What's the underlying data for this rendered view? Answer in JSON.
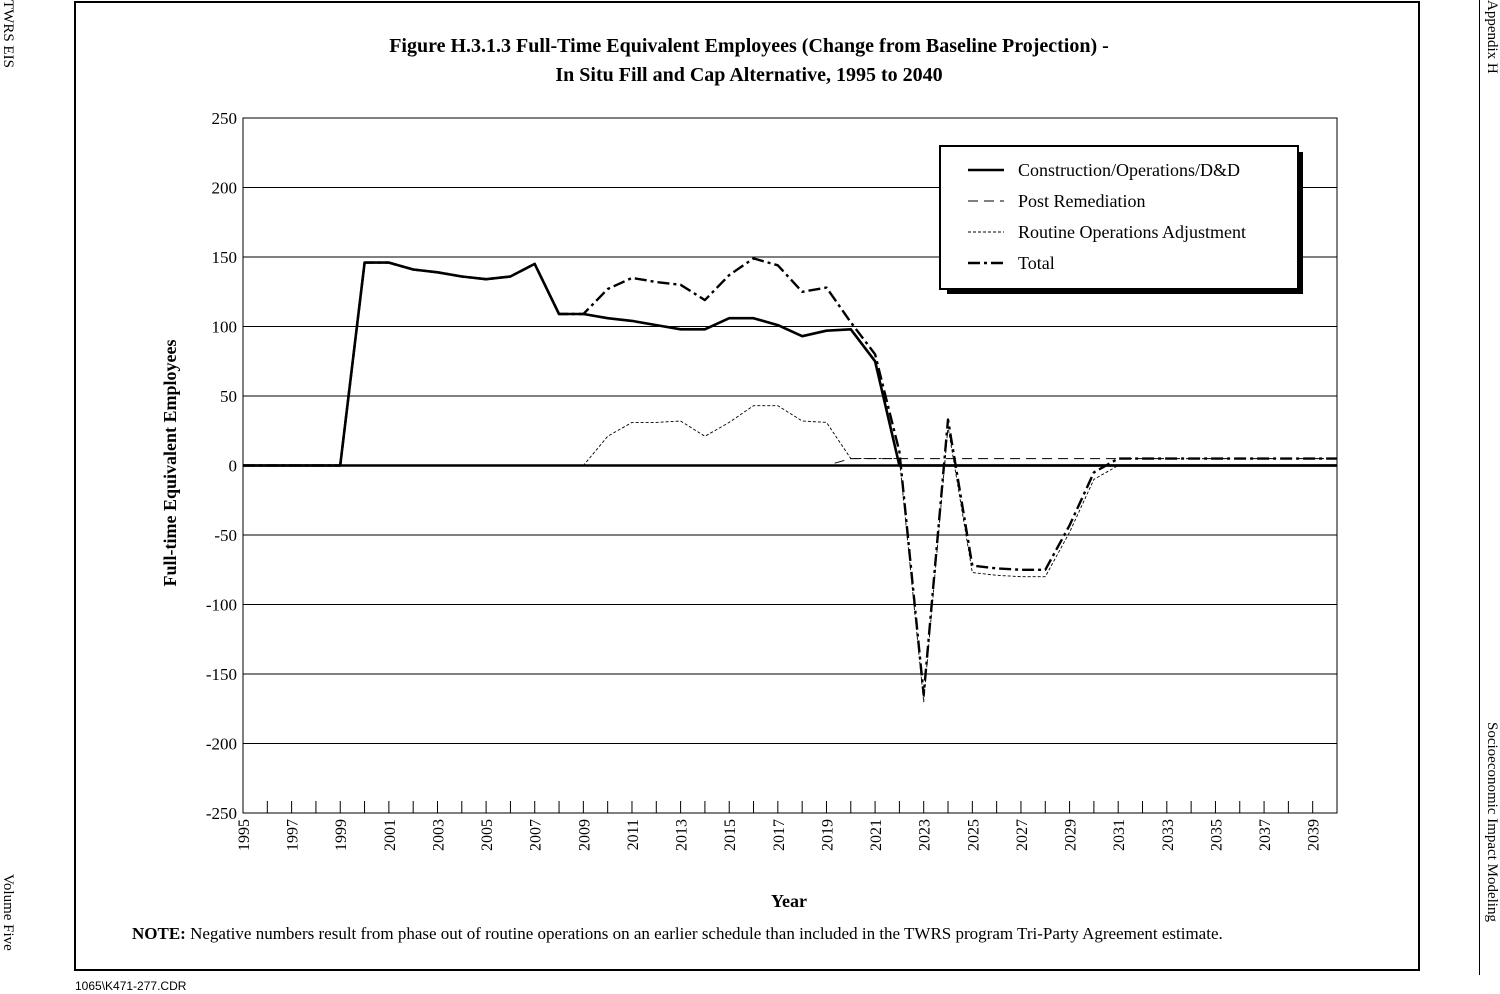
{
  "header_left": "TWRS EIS",
  "footer_left": "Volume Five",
  "header_right": "Appendix H",
  "footer_right": "Socioeconomic Impact Modeling",
  "file_code": "1065\\K471-277.CDR",
  "note": {
    "label": "NOTE:",
    "text": "Negative numbers result from phase out of routine operations on an earlier schedule than included in the TWRS program Tri-Party Agreement estimate."
  },
  "chart_data": {
    "type": "line",
    "title_line1": "Figure H.3.1.3  Full-Time Equivalent Employees (Change from Baseline Projection) -",
    "title_line2": "In Situ Fill and Cap Alternative, 1995 to 2040",
    "xlabel": "Year",
    "ylabel": "Full-time Equivalent Employees",
    "xlim": [
      1995,
      2040
    ],
    "ylim": [
      -250,
      250
    ],
    "y_ticks": [
      250,
      200,
      150,
      100,
      50,
      0,
      -50,
      -100,
      -150,
      -200,
      -250
    ],
    "x_tick_labels": [
      "1995",
      "1997",
      "1999",
      "2001",
      "2003",
      "2005",
      "2007",
      "2009",
      "2011",
      "2013",
      "2015",
      "2017",
      "2019",
      "2021",
      "2023",
      "2025",
      "2027",
      "2029",
      "2031",
      "2033",
      "2035",
      "2037",
      "2039"
    ],
    "grid": true,
    "legend_position": "top-right",
    "x": [
      1995,
      1996,
      1997,
      1998,
      1999,
      2000,
      2001,
      2002,
      2003,
      2004,
      2005,
      2006,
      2007,
      2008,
      2009,
      2010,
      2011,
      2012,
      2013,
      2014,
      2015,
      2016,
      2017,
      2018,
      2019,
      2020,
      2021,
      2022,
      2023,
      2024,
      2025,
      2026,
      2027,
      2028,
      2029,
      2030,
      2031,
      2032,
      2033,
      2034,
      2035,
      2036,
      2037,
      2038,
      2039,
      2040
    ],
    "series": [
      {
        "name": "Construction/Operations/D&D",
        "style": "solid",
        "values": [
          0,
          0,
          0,
          0,
          0,
          146,
          146,
          141,
          139,
          136,
          134,
          136,
          145,
          109,
          109,
          106,
          104,
          101,
          98,
          98,
          106,
          106,
          101,
          93,
          97,
          98,
          75,
          0,
          0,
          0,
          0,
          0,
          0,
          0,
          0,
          0,
          0,
          0,
          0,
          0,
          0,
          0,
          0,
          0,
          0,
          0
        ]
      },
      {
        "name": "Post Remediation",
        "style": "dashed",
        "values": [
          0,
          0,
          0,
          0,
          0,
          0,
          0,
          0,
          0,
          0,
          0,
          0,
          0,
          0,
          0,
          0,
          0,
          0,
          0,
          0,
          0,
          0,
          0,
          0,
          0,
          5,
          5,
          5,
          5,
          5,
          5,
          5,
          5,
          5,
          5,
          5,
          5,
          5,
          5,
          5,
          5,
          5,
          5,
          5,
          5,
          5
        ]
      },
      {
        "name": "Routine Operations Adjustment",
        "style": "dotted",
        "values": [
          0,
          0,
          0,
          0,
          0,
          0,
          0,
          0,
          0,
          0,
          0,
          0,
          0,
          0,
          0,
          21,
          31,
          31,
          32,
          21,
          31,
          43,
          43,
          32,
          31,
          5,
          5,
          5,
          -170,
          28,
          -77,
          -79,
          -80,
          -80,
          -48,
          -10,
          0,
          0,
          0,
          0,
          0,
          0,
          0,
          0,
          0,
          0
        ]
      },
      {
        "name": "Total",
        "style": "dash-dot",
        "values": [
          0,
          0,
          0,
          0,
          0,
          146,
          146,
          141,
          139,
          136,
          134,
          136,
          145,
          109,
          109,
          127,
          135,
          132,
          130,
          119,
          137,
          149,
          144,
          125,
          128,
          103,
          80,
          10,
          -165,
          33,
          -72,
          -74,
          -75,
          -75,
          -43,
          -5,
          5,
          5,
          5,
          5,
          5,
          5,
          5,
          5,
          5,
          5
        ]
      }
    ]
  }
}
